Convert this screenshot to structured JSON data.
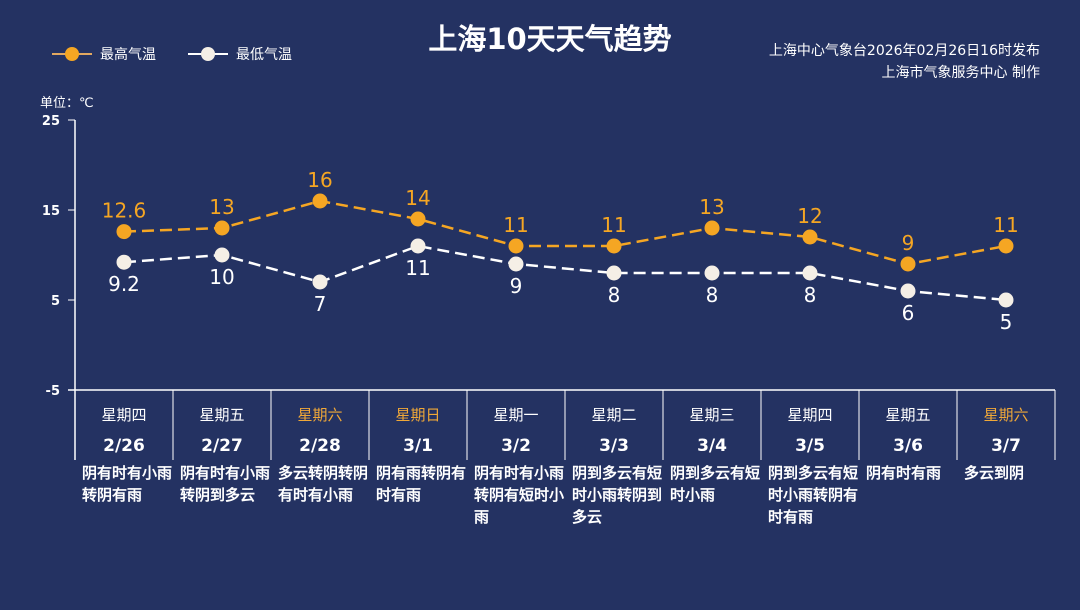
{
  "title": "上海10天天气趋势",
  "source_line1": "上海中心气象台2026年02月26日16时发布",
  "source_line2": "上海市气象服务中心 制作",
  "unit": "单位：℃",
  "colors": {
    "high": "#f5a623",
    "low": "#f5efe6",
    "weekend": "#f0a838",
    "bg": "#243262"
  },
  "chart_data": {
    "type": "line",
    "title": "上海10天天气趋势",
    "ylabel": "单位：℃",
    "ylim": [
      -5,
      25
    ],
    "yticks": [
      25,
      15,
      5,
      -5
    ],
    "legend_position": "top-left",
    "categories": [
      "2/26",
      "2/27",
      "2/28",
      "3/1",
      "3/2",
      "3/3",
      "3/4",
      "3/5",
      "3/6",
      "3/7"
    ],
    "weekdays": [
      "星期四",
      "星期五",
      "星期六",
      "星期日",
      "星期一",
      "星期二",
      "星期三",
      "星期四",
      "星期五",
      "星期六"
    ],
    "weekend": [
      false,
      false,
      true,
      true,
      false,
      false,
      false,
      false,
      false,
      true
    ],
    "weather": [
      "阴有时有小雨转阴有雨",
      "阴有时有小雨转阴到多云",
      "多云转阴转阴有时有小雨",
      "阴有雨转阴有时有雨",
      "阴有时有小雨转阴有短时小雨",
      "阴到多云有短时小雨转阴到多云",
      "阴到多云有短时小雨",
      "阴到多云有短时小雨转阴有时有雨",
      "阴有时有雨",
      "多云到阴"
    ],
    "series": [
      {
        "name": "最高气温",
        "values": [
          12.6,
          13,
          16,
          14,
          11,
          11,
          13,
          12,
          9,
          11
        ]
      },
      {
        "name": "最低气温",
        "values": [
          9.2,
          10,
          7,
          11,
          9,
          8,
          8,
          8,
          6,
          5
        ]
      }
    ]
  }
}
